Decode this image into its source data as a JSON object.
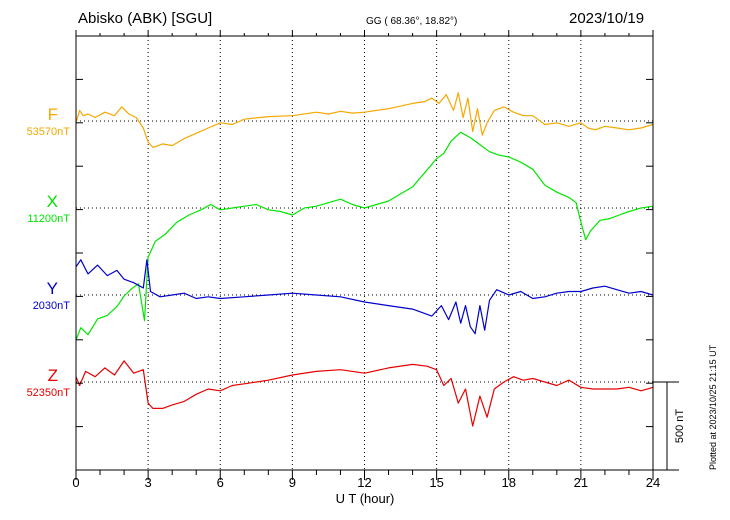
{
  "header": {
    "station": "Abisko (ABK)  [SGU]",
    "coords": "GG ( 68.36°,  18.82°)",
    "date": "2023/10/19"
  },
  "plot_footer": "Plotted at 2023/10/25 21:15 UT",
  "colors": {
    "F": "#f5a800",
    "X": "#00e600",
    "Y": "#0000cc",
    "Z": "#e60000",
    "axis": "#000000"
  },
  "chart_data": {
    "type": "line",
    "xlabel": "U T (hour)",
    "xlim": [
      0,
      24
    ],
    "x_ticks": [
      "0",
      "3",
      "6",
      "9",
      "12",
      "15",
      "18",
      "21",
      "24"
    ],
    "scale_bar": {
      "value": 500,
      "label": "500 nT"
    },
    "grid": "dotted baseline per component",
    "series": [
      {
        "name": "F",
        "baseline_label": "53570nT",
        "baseline_nT": 53570,
        "color": "#f5a800",
        "x": [
          0,
          0.15,
          0.3,
          0.5,
          0.8,
          1.2,
          1.6,
          1.9,
          2.2,
          2.5,
          2.8,
          3.0,
          3.2,
          3.6,
          4.0,
          4.5,
          5.0,
          5.5,
          6.0,
          6.5,
          7.0,
          8.0,
          9.0,
          10.0,
          10.5,
          11.0,
          11.5,
          12.0,
          13.0,
          14.0,
          14.5,
          14.8,
          15.1,
          15.4,
          15.7,
          15.9,
          16.1,
          16.3,
          16.5,
          16.7,
          16.9,
          17.1,
          17.4,
          17.8,
          18.2,
          18.6,
          19.0,
          19.5,
          20.0,
          20.5,
          21.0,
          21.3,
          21.6,
          22.0,
          22.5,
          23.0,
          23.5,
          24.0
        ],
        "y": [
          -10,
          60,
          30,
          40,
          20,
          50,
          30,
          80,
          40,
          20,
          -40,
          -120,
          -150,
          -130,
          -140,
          -100,
          -70,
          -40,
          -10,
          -20,
          10,
          25,
          30,
          50,
          40,
          55,
          45,
          50,
          70,
          100,
          110,
          130,
          100,
          150,
          60,
          160,
          20,
          130,
          -60,
          70,
          -80,
          -10,
          60,
          80,
          50,
          30,
          30,
          -20,
          -10,
          -30,
          -10,
          -40,
          -50,
          -30,
          -40,
          -50,
          -40,
          -20
        ]
      },
      {
        "name": "X",
        "baseline_label": "11200nT",
        "baseline_nT": 11200,
        "color": "#00e600",
        "x": [
          0,
          0.2,
          0.5,
          0.9,
          1.3,
          1.7,
          2.0,
          2.3,
          2.6,
          2.85,
          3.0,
          3.3,
          3.7,
          4.2,
          4.7,
          5.2,
          5.6,
          6.0,
          6.5,
          7.0,
          7.5,
          8.0,
          8.5,
          9.0,
          9.5,
          10.0,
          10.5,
          11.0,
          11.5,
          12.0,
          12.5,
          13.0,
          13.5,
          14.0,
          14.5,
          15.0,
          15.3,
          15.6,
          16.0,
          16.4,
          16.8,
          17.2,
          17.6,
          18.0,
          18.5,
          19.0,
          19.5,
          20.0,
          20.5,
          20.8,
          21.0,
          21.2,
          21.4,
          21.8,
          22.2,
          22.6,
          23.0,
          23.5,
          24.0
        ],
        "y": [
          -750,
          -680,
          -720,
          -630,
          -610,
          -560,
          -500,
          -460,
          -430,
          -640,
          -280,
          -190,
          -150,
          -80,
          -40,
          -10,
          20,
          -10,
          0,
          10,
          20,
          -10,
          -20,
          -40,
          0,
          10,
          30,
          50,
          20,
          0,
          20,
          40,
          80,
          120,
          200,
          280,
          310,
          380,
          430,
          400,
          360,
          320,
          300,
          290,
          260,
          220,
          130,
          90,
          60,
          30,
          -80,
          -180,
          -130,
          -70,
          -60,
          -40,
          -20,
          0,
          10
        ]
      },
      {
        "name": "Y",
        "baseline_label": "2030nT",
        "baseline_nT": 2030,
        "color": "#0000cc",
        "x": [
          0,
          0.2,
          0.5,
          0.9,
          1.3,
          1.7,
          2.0,
          2.4,
          2.8,
          2.95,
          3.1,
          3.5,
          4.0,
          4.5,
          5.0,
          5.5,
          6.0,
          7.0,
          8.0,
          9.0,
          10.0,
          11.0,
          12.0,
          13.0,
          14.0,
          14.8,
          15.2,
          15.5,
          15.8,
          16.0,
          16.2,
          16.4,
          16.6,
          16.8,
          17.0,
          17.2,
          17.5,
          18.0,
          18.5,
          19.0,
          19.5,
          20.0,
          20.5,
          21.0,
          21.5,
          22.0,
          22.5,
          23.0,
          23.5,
          24.0
        ],
        "y": [
          160,
          200,
          120,
          170,
          110,
          140,
          90,
          70,
          40,
          200,
          20,
          -10,
          0,
          10,
          -20,
          -10,
          -20,
          -10,
          0,
          10,
          0,
          -10,
          -40,
          -60,
          -80,
          -120,
          -60,
          -140,
          -40,
          -160,
          -60,
          -180,
          -220,
          -60,
          -200,
          -30,
          30,
          0,
          20,
          -20,
          -10,
          10,
          20,
          20,
          40,
          50,
          30,
          10,
          20,
          0
        ]
      },
      {
        "name": "Z",
        "baseline_label": "52350nT",
        "baseline_nT": 52350,
        "color": "#e60000",
        "x": [
          0,
          0.15,
          0.4,
          0.8,
          1.2,
          1.6,
          2.0,
          2.4,
          2.8,
          3.0,
          3.2,
          3.6,
          4.0,
          4.5,
          5.0,
          5.5,
          6.0,
          6.5,
          7.0,
          8.0,
          9.0,
          10.0,
          11.0,
          12.0,
          13.0,
          14.0,
          14.6,
          15.0,
          15.3,
          15.6,
          15.9,
          16.2,
          16.5,
          16.8,
          17.1,
          17.4,
          17.8,
          18.2,
          18.6,
          19.0,
          19.5,
          20.0,
          20.5,
          21.0,
          21.5,
          22.0,
          22.5,
          23.0,
          23.5,
          24.0
        ],
        "y": [
          30,
          -20,
          60,
          30,
          80,
          40,
          120,
          50,
          70,
          -120,
          -150,
          -150,
          -130,
          -110,
          -70,
          -40,
          -50,
          -20,
          -10,
          10,
          40,
          60,
          70,
          50,
          80,
          100,
          90,
          70,
          -20,
          20,
          -120,
          -40,
          -250,
          -80,
          -200,
          -40,
          0,
          30,
          10,
          20,
          0,
          -20,
          10,
          -30,
          -40,
          -40,
          -40,
          -30,
          -50,
          -30
        ]
      }
    ]
  }
}
